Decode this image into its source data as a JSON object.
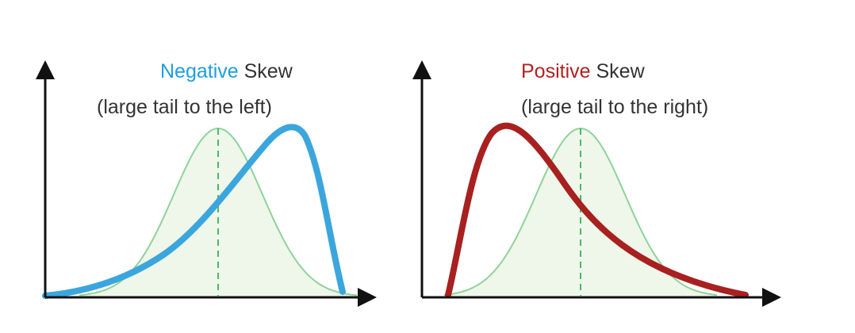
{
  "panels": [
    {
      "title_accent": "Negative",
      "title_rest": " Skew",
      "subtitle": "(large tail to the left)",
      "accent_color": "#1da0dc",
      "curve_color": "#3ba6dd",
      "skew": "negative"
    },
    {
      "title_accent": "Positive",
      "title_rest": " Skew",
      "subtitle": "(large tail to the right)",
      "accent_color": "#b22222",
      "curve_color": "#a82020",
      "skew": "positive"
    }
  ],
  "colors": {
    "axis": "#111111",
    "normal_stroke": "#8fd39a",
    "normal_fill": "#eef7ea",
    "mean_line": "#4cb86a",
    "text": "#333333"
  }
}
